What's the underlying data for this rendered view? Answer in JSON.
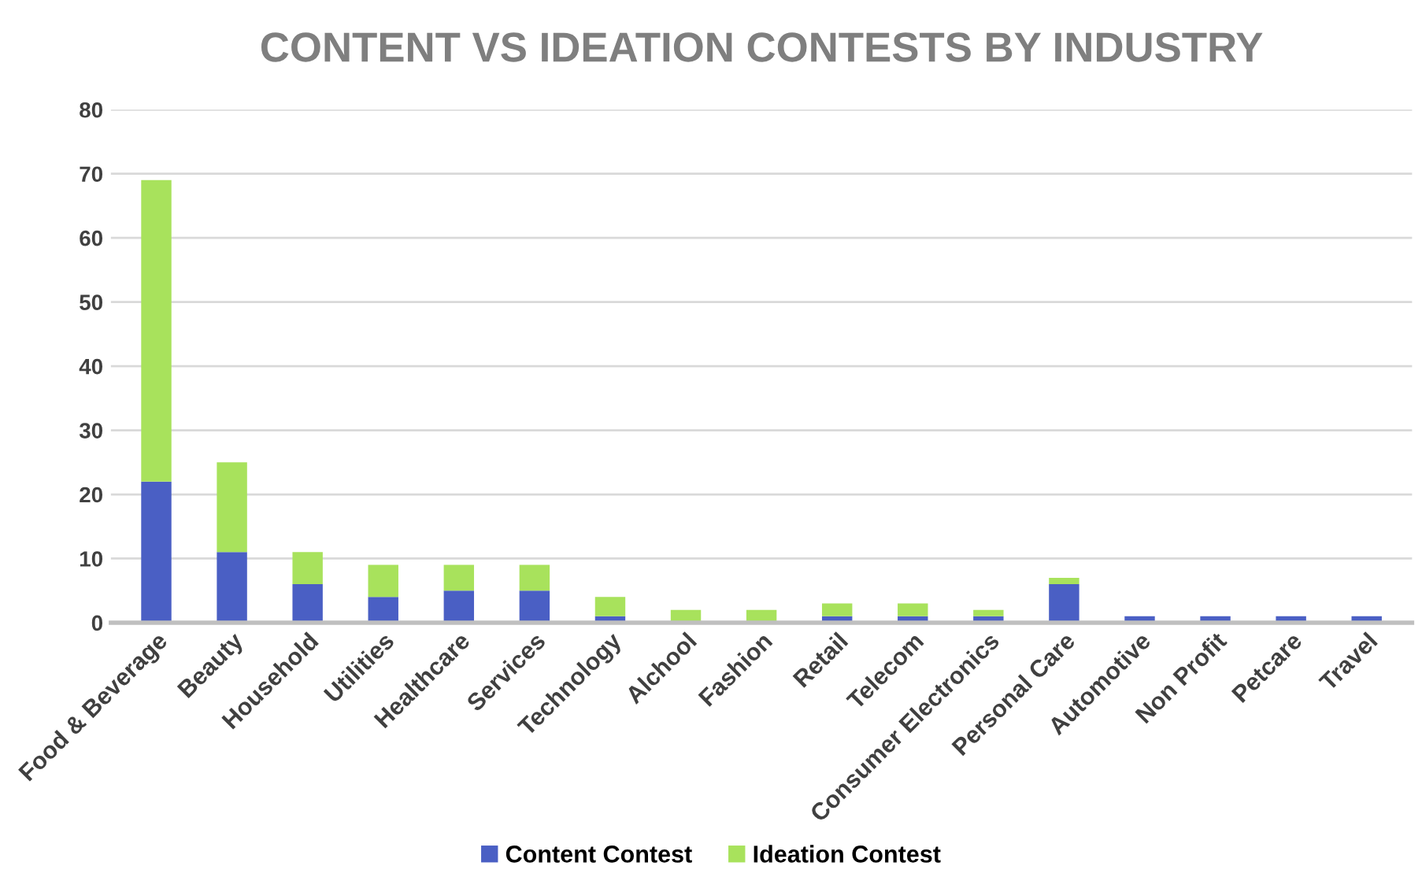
{
  "chart_data": {
    "type": "bar",
    "title": "CONTENT VS IDEATION CONTESTS BY INDUSTRY",
    "categories": [
      "Food & Beverage",
      "Beauty",
      "Household",
      "Utilities",
      "Healthcare",
      "Services",
      "Technology",
      "Alchool",
      "Fashion",
      "Retail",
      "Telecom",
      "Consumer Electronics",
      "Personal Care",
      "Automotive",
      "Non Profit",
      "Petcare",
      "Travel"
    ],
    "series": [
      {
        "name": "Content Contest",
        "color": "#4a5fc4",
        "values": [
          22,
          11,
          6,
          4,
          5,
          5,
          1,
          0,
          0,
          1,
          1,
          1,
          6,
          1,
          1,
          1,
          1
        ]
      },
      {
        "name": "Ideation Contest",
        "color": "#a8e25c",
        "values": [
          47,
          14,
          5,
          5,
          4,
          4,
          3,
          2,
          2,
          2,
          2,
          1,
          1,
          0,
          0,
          0,
          0
        ]
      }
    ],
    "stacked": true,
    "ylim": [
      0,
      80
    ],
    "yticks": [
      0,
      10,
      20,
      30,
      40,
      50,
      60,
      70,
      80
    ],
    "grid": "y",
    "legend": "bottom"
  }
}
